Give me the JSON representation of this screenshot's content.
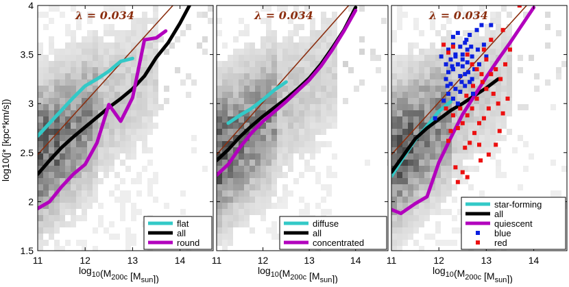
{
  "figure": {
    "ylabel": "log10(j* [kpc*km/s])",
    "colors": {
      "flat": "#33c9c7",
      "all": "#000000",
      "round": "#b200bd",
      "ref": "#8b2e0f",
      "blue": "#0b1fe0",
      "red": "#ec1010"
    }
  },
  "chart_data": [
    {
      "type": "line",
      "panel": "left",
      "title": "",
      "annotation": "λ = 0.034",
      "xlabel": "log10(M200c [Msun])",
      "ylabel": "log10(j* [kpc*km/s])",
      "xlim": [
        11,
        14.7
      ],
      "ylim": [
        1.5,
        4.0
      ],
      "xticks": [
        "11",
        "12",
        "13",
        "14"
      ],
      "yticks": [
        "1.5",
        "2",
        "2.5",
        "3",
        "3.5",
        "4"
      ],
      "reference_line": {
        "label": "λ = 0.034",
        "points": [
          [
            11,
            2.48
          ],
          [
            13.85,
            4.0
          ]
        ]
      },
      "series": [
        {
          "name": "flat",
          "color": "#33c9c7",
          "x": [
            11.0,
            11.25,
            11.5,
            11.75,
            12.0,
            12.25,
            12.5,
            12.75,
            13.0
          ],
          "y": [
            2.67,
            2.8,
            2.93,
            3.06,
            3.18,
            3.25,
            3.33,
            3.43,
            3.46
          ]
        },
        {
          "name": "all",
          "color": "#000000",
          "x": [
            11.0,
            11.25,
            11.5,
            11.75,
            12.0,
            12.25,
            12.5,
            12.75,
            13.0,
            13.25,
            13.5,
            13.75,
            14.0,
            14.2
          ],
          "y": [
            2.28,
            2.42,
            2.55,
            2.66,
            2.76,
            2.86,
            2.96,
            3.05,
            3.15,
            3.28,
            3.47,
            3.62,
            3.82,
            4.0
          ]
        },
        {
          "name": "round",
          "color": "#b200bd",
          "x": [
            11.0,
            11.25,
            11.5,
            11.75,
            12.0,
            12.25,
            12.5,
            12.75,
            13.0,
            13.25,
            13.5,
            13.7
          ],
          "y": [
            1.93,
            2.0,
            2.15,
            2.28,
            2.38,
            2.6,
            2.99,
            2.82,
            3.06,
            3.65,
            3.67,
            3.74
          ]
        }
      ],
      "legend": {
        "location": "bottom-right",
        "entries": [
          "flat",
          "all",
          "round"
        ]
      }
    },
    {
      "type": "line",
      "panel": "middle",
      "title": "",
      "annotation": "λ = 0.034",
      "xlabel": "log10(M200c [Msun])",
      "xlim": [
        11,
        14.7
      ],
      "ylim": [
        1.5,
        4.0
      ],
      "xticks": [
        "11",
        "12",
        "13",
        "14"
      ],
      "yticks": [
        "1.5",
        "2",
        "2.5",
        "3",
        "3.5",
        "4"
      ],
      "reference_line": {
        "label": "λ = 0.034",
        "points": [
          [
            11,
            2.48
          ],
          [
            13.85,
            4.0
          ]
        ]
      },
      "series": [
        {
          "name": "diffuse",
          "color": "#33c9c7",
          "x": [
            11.25,
            11.5,
            11.75,
            12.0,
            12.25,
            12.5
          ],
          "y": [
            2.8,
            2.88,
            2.95,
            3.04,
            3.14,
            3.22
          ]
        },
        {
          "name": "all",
          "color": "#000000",
          "x": [
            11.0,
            11.25,
            11.5,
            11.75,
            12.0,
            12.25,
            12.5,
            12.75,
            13.0,
            13.25,
            13.5,
            13.75,
            14.0
          ],
          "y": [
            2.42,
            2.53,
            2.66,
            2.77,
            2.87,
            2.96,
            3.05,
            3.15,
            3.26,
            3.4,
            3.57,
            3.75,
            3.98
          ]
        },
        {
          "name": "concentrated",
          "color": "#b200bd",
          "x": [
            11.0,
            11.25,
            11.5,
            11.75,
            12.0,
            12.25,
            12.5,
            12.75,
            13.0,
            13.25,
            13.5,
            13.75,
            14.0
          ],
          "y": [
            2.27,
            2.38,
            2.55,
            2.7,
            2.82,
            2.92,
            3.02,
            3.13,
            3.24,
            3.38,
            3.55,
            3.74,
            3.95
          ]
        }
      ],
      "legend": {
        "location": "bottom-right",
        "entries": [
          "diffuse",
          "all",
          "concentrated"
        ]
      }
    },
    {
      "type": "line",
      "panel": "right",
      "title": "",
      "annotation": "λ = 0.034",
      "xlabel": "log10(M200c [Msun])",
      "xlim": [
        11,
        14.7
      ],
      "ylim": [
        1.5,
        4.0
      ],
      "xticks": [
        "11",
        "12",
        "13",
        "14"
      ],
      "yticks": [
        "1.5",
        "2",
        "2.5",
        "3",
        "3.5",
        "4"
      ],
      "reference_line": {
        "label": "λ = 0.034",
        "points": [
          [
            11,
            2.48
          ],
          [
            13.85,
            4.0
          ]
        ]
      },
      "series": [
        {
          "name": "star-forming",
          "color": "#33c9c7",
          "x": [
            11.0,
            11.25,
            11.5,
            11.75,
            12.0,
            12.25
          ],
          "y": [
            2.26,
            2.45,
            2.63,
            2.77,
            2.92,
            3.02
          ]
        },
        {
          "name": "all",
          "color": "#000000",
          "x": [
            11.0,
            11.25,
            11.5,
            11.75,
            12.0,
            12.25,
            12.5,
            12.75,
            13.0,
            13.25
          ],
          "y": [
            2.3,
            2.47,
            2.64,
            2.75,
            2.84,
            2.93,
            3.0,
            3.08,
            3.16,
            3.25
          ]
        },
        {
          "name": "quiescent",
          "color": "#b200bd",
          "x": [
            11.0,
            11.2,
            11.5,
            11.75,
            12.0,
            12.25,
            12.5,
            12.75,
            13.0,
            13.25,
            13.5,
            13.75,
            14.0
          ],
          "y": [
            1.92,
            1.88,
            1.98,
            2.05,
            2.4,
            2.65,
            2.89,
            3.08,
            3.27,
            3.45,
            3.62,
            3.8,
            3.98
          ]
        }
      ],
      "scatter": [
        {
          "name": "blue",
          "color": "#0b1fe0",
          "points": [
            [
              12.2,
              3.55
            ],
            [
              12.3,
              3.6
            ],
            [
              12.35,
              3.5
            ],
            [
              12.25,
              3.45
            ],
            [
              12.45,
              3.58
            ],
            [
              12.5,
              3.5
            ],
            [
              12.55,
              3.62
            ],
            [
              12.6,
              3.55
            ],
            [
              12.65,
              3.7
            ],
            [
              12.4,
              3.4
            ],
            [
              12.3,
              3.35
            ],
            [
              12.5,
              3.38
            ],
            [
              12.6,
              3.42
            ],
            [
              12.7,
              3.48
            ],
            [
              12.2,
              3.32
            ],
            [
              12.15,
              3.25
            ],
            [
              12.25,
              3.2
            ],
            [
              12.35,
              3.15
            ],
            [
              12.45,
              3.28
            ],
            [
              12.55,
              3.3
            ],
            [
              12.7,
              3.25
            ],
            [
              12.8,
              3.75
            ],
            [
              12.9,
              3.8
            ],
            [
              13.1,
              3.8
            ],
            [
              12.4,
              3.72
            ],
            [
              12.3,
              3.68
            ],
            [
              12.2,
              3.1
            ],
            [
              12.1,
              3.03
            ],
            [
              12.3,
              3.05
            ],
            [
              12.45,
              3.12
            ],
            [
              12.55,
              3.18
            ],
            [
              12.65,
              3.22
            ],
            [
              12.75,
              3.35
            ],
            [
              12.85,
              3.4
            ],
            [
              12.15,
              3.4
            ],
            [
              12.05,
              3.48
            ],
            [
              12.5,
              3.45
            ],
            [
              12.62,
              3.32
            ],
            [
              11.92,
              2.85
            ],
            [
              12.4,
              3.0
            ],
            [
              12.72,
              3.1
            ],
            [
              12.35,
              3.48
            ],
            [
              12.28,
              3.38
            ],
            [
              12.48,
              3.22
            ],
            [
              12.58,
              3.65
            ],
            [
              12.68,
              3.58
            ],
            [
              12.18,
              3.18
            ],
            [
              12.82,
              3.55
            ],
            [
              12.95,
              3.6
            ],
            [
              13.0,
              3.48
            ]
          ]
        },
        {
          "name": "red",
          "color": "#ec1010",
          "points": [
            [
              12.6,
              3.5
            ],
            [
              12.7,
              3.4
            ],
            [
              12.8,
              3.35
            ],
            [
              12.9,
              3.3
            ],
            [
              13.0,
              3.45
            ],
            [
              13.1,
              3.3
            ],
            [
              13.2,
              3.35
            ],
            [
              13.3,
              3.25
            ],
            [
              13.15,
              3.1
            ],
            [
              13.0,
              3.15
            ],
            [
              12.8,
              3.05
            ],
            [
              12.7,
              2.95
            ],
            [
              12.6,
              2.88
            ],
            [
              12.5,
              2.8
            ],
            [
              12.4,
              2.75
            ],
            [
              12.55,
              2.55
            ],
            [
              12.65,
              2.6
            ],
            [
              12.75,
              2.7
            ],
            [
              12.85,
              2.8
            ],
            [
              12.95,
              2.85
            ],
            [
              13.05,
              2.95
            ],
            [
              13.25,
              3.0
            ],
            [
              13.35,
              2.9
            ],
            [
              13.45,
              3.05
            ],
            [
              12.3,
              2.88
            ],
            [
              12.45,
              2.95
            ],
            [
              12.35,
              2.35
            ],
            [
              12.5,
              2.3
            ],
            [
              12.4,
              2.2
            ],
            [
              12.6,
              2.25
            ],
            [
              12.85,
              2.58
            ],
            [
              13.05,
              2.48
            ],
            [
              13.2,
              2.58
            ],
            [
              12.2,
              2.62
            ],
            [
              12.25,
              2.72
            ],
            [
              13.4,
              3.4
            ],
            [
              13.5,
              3.55
            ],
            [
              13.7,
              4.0
            ],
            [
              13.35,
              3.75
            ],
            [
              12.95,
              3.55
            ],
            [
              12.1,
              3.6
            ],
            [
              12.2,
              3.52
            ],
            [
              12.3,
              3.58
            ],
            [
              13.1,
              3.65
            ],
            [
              12.92,
              3.22
            ],
            [
              12.58,
              3.08
            ],
            [
              12.72,
              3.18
            ],
            [
              13.28,
              2.72
            ],
            [
              12.88,
              2.42
            ],
            [
              12.15,
              2.95
            ]
          ]
        }
      ],
      "legend": {
        "location": "bottom-right",
        "entries": [
          "star-forming",
          "all",
          "quiescent",
          "blue",
          "red"
        ]
      }
    }
  ]
}
